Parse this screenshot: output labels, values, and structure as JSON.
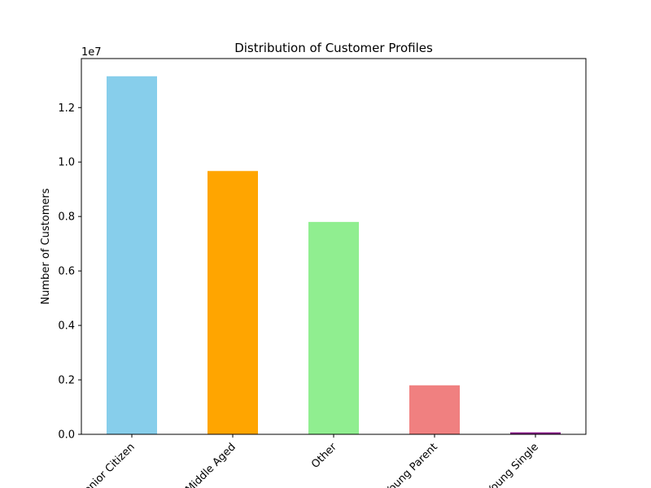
{
  "chart_data": {
    "type": "bar",
    "title": "Distribution of Customer Profiles",
    "ylabel": "Number of Customers",
    "xlabel": "",
    "offset_label": "1e7",
    "scale": 10000000,
    "categories": [
      "Senior Citizen",
      "Middle Aged",
      "Other",
      "Young Parent",
      "Young Single"
    ],
    "values": [
      13150000,
      9670000,
      7800000,
      1800000,
      70000
    ],
    "colors": [
      "#87ceeb",
      "#ffa500",
      "#90ee90",
      "#f08080",
      "#800080"
    ],
    "ylim": [
      0,
      13800000
    ],
    "yticks": [
      0,
      2000000,
      4000000,
      6000000,
      8000000,
      10000000,
      12000000
    ],
    "ytick_labels": [
      "0.0",
      "0.2",
      "0.4",
      "0.6",
      "0.8",
      "1.0",
      "1.2"
    ],
    "grid": false,
    "legend": false
  }
}
